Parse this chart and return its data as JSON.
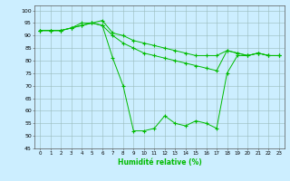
{
  "xlabel": "Humidité relative (%)",
  "bg_color": "#cceeff",
  "grid_color": "#99bbbb",
  "line_color": "#00bb00",
  "marker": "+",
  "xlim": [
    -0.5,
    23.5
  ],
  "ylim": [
    45,
    102
  ],
  "yticks": [
    45,
    50,
    55,
    60,
    65,
    70,
    75,
    80,
    85,
    90,
    95,
    100
  ],
  "xticks": [
    0,
    1,
    2,
    3,
    4,
    5,
    6,
    7,
    8,
    9,
    10,
    11,
    12,
    13,
    14,
    15,
    16,
    17,
    18,
    19,
    20,
    21,
    22,
    23
  ],
  "series": [
    [
      92,
      92,
      92,
      93,
      94,
      95,
      96,
      91,
      90,
      88,
      87,
      86,
      85,
      84,
      83,
      82,
      82,
      82,
      84,
      83,
      82,
      83,
      82,
      82
    ],
    [
      92,
      92,
      92,
      93,
      95,
      95,
      94,
      90,
      87,
      85,
      83,
      82,
      81,
      80,
      79,
      78,
      77,
      76,
      84,
      83,
      82,
      83,
      82,
      82
    ],
    [
      92,
      92,
      92,
      93,
      94,
      95,
      94,
      81,
      70,
      52,
      52,
      53,
      58,
      55,
      54,
      56,
      55,
      53,
      75,
      82,
      82,
      83,
      82,
      82
    ]
  ]
}
